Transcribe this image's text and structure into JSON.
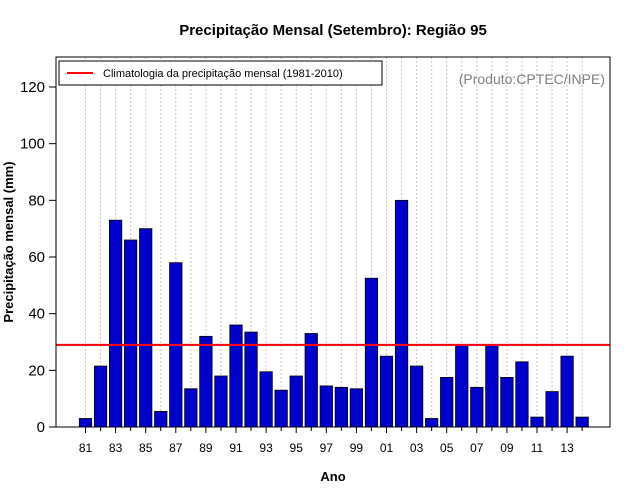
{
  "chart_data": {
    "type": "bar",
    "title": "Precipitação Mensal (Setembro): Região 95",
    "xlabel": "Ano",
    "ylabel": "Precipitação mensal (mm)",
    "ylim": [
      0,
      130
    ],
    "yticks": [
      0,
      20,
      40,
      60,
      80,
      100,
      120
    ],
    "categories": [
      "81",
      "82",
      "83",
      "84",
      "85",
      "86",
      "87",
      "88",
      "89",
      "90",
      "91",
      "92",
      "93",
      "94",
      "95",
      "96",
      "97",
      "98",
      "99",
      "00",
      "01",
      "02",
      "03",
      "04",
      "05",
      "06",
      "07",
      "08",
      "09",
      "10",
      "11",
      "12",
      "13",
      "14"
    ],
    "tick_labels": [
      "81",
      "83",
      "85",
      "87",
      "89",
      "91",
      "93",
      "95",
      "97",
      "99",
      "01",
      "03",
      "05",
      "07",
      "09",
      "11",
      "13"
    ],
    "values": [
      3,
      21.5,
      73,
      66,
      70,
      5.5,
      58,
      13.5,
      32,
      18,
      36,
      33.5,
      19.5,
      13,
      18,
      33,
      14.5,
      14,
      13.5,
      52.5,
      25,
      80,
      21.5,
      3,
      17.5,
      29,
      14,
      29,
      17.5,
      23,
      3.5,
      12.5,
      25,
      3.5
    ],
    "bar_color": "#0000cd",
    "climatology": {
      "label": "Climatologia da precipitação mensal (1981-2010)",
      "value": 29,
      "color": "#ff0000"
    },
    "legend_position": "top-left",
    "grid": "vertical-dotted"
  },
  "credit": "(Produto:CPTEC/INPE)"
}
